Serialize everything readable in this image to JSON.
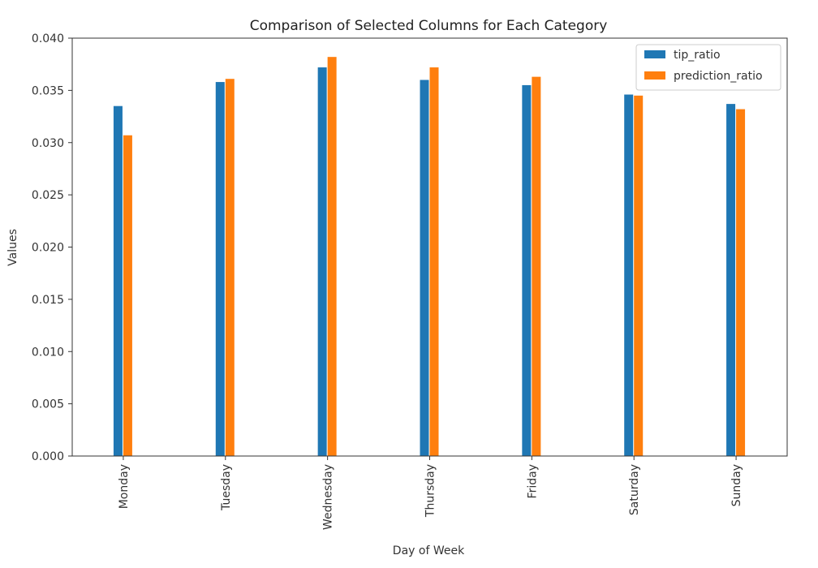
{
  "chart_data": {
    "type": "bar",
    "title": "Comparison of Selected Columns for Each Category",
    "xlabel": "Day of Week",
    "ylabel": "Values",
    "categories": [
      "Monday",
      "Tuesday",
      "Wednesday",
      "Thursday",
      "Friday",
      "Saturday",
      "Sunday"
    ],
    "series": [
      {
        "name": "tip_ratio",
        "color": "#1f77b4",
        "values": [
          0.0335,
          0.0358,
          0.0372,
          0.036,
          0.0355,
          0.0346,
          0.0337
        ]
      },
      {
        "name": "prediction_ratio",
        "color": "#ff7f0e",
        "values": [
          0.0307,
          0.0361,
          0.0382,
          0.0372,
          0.0363,
          0.0345,
          0.0332
        ]
      }
    ],
    "ylim": [
      0,
      0.04
    ],
    "yticks": [
      "0.000",
      "0.005",
      "0.010",
      "0.015",
      "0.020",
      "0.025",
      "0.030",
      "0.035",
      "0.040"
    ],
    "grid": false,
    "legend_position": "top-right"
  }
}
